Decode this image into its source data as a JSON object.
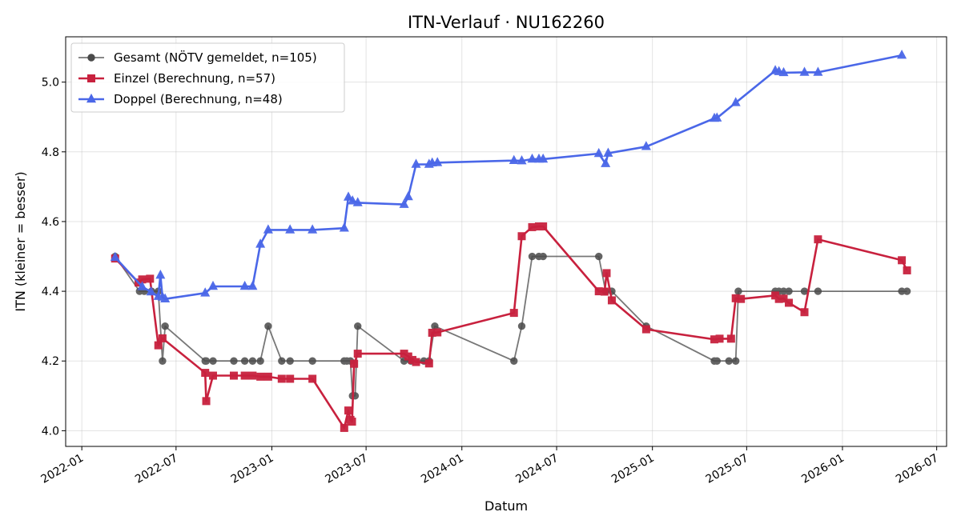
{
  "chart_data": {
    "type": "line",
    "title": "ITN-Verlauf · NU162260",
    "xlabel": "Datum",
    "ylabel": "ITN  (kleiner = besser)",
    "x_ticks": [
      "2022-01",
      "2022-07",
      "2023-01",
      "2023-07",
      "2024-01",
      "2024-07",
      "2025-01",
      "2025-07",
      "2026-01",
      "2026-07"
    ],
    "y_ticks": [
      "4.0",
      "4.2",
      "4.4",
      "4.6",
      "4.8",
      "5.0"
    ],
    "xlim": [
      "2021-12-01",
      "2026-07-20"
    ],
    "ylim": [
      3.955,
      5.13
    ],
    "grid": true,
    "legend_position": "top-left",
    "series": [
      {
        "name": "Gesamt (NÖTV gemeldet, n=105)",
        "color": "#4a4a4a",
        "marker": "circle",
        "points": [
          [
            "2022-03-06",
            4.5
          ],
          [
            "2022-04-22",
            4.4
          ],
          [
            "2022-05-01",
            4.4
          ],
          [
            "2022-05-15",
            4.4
          ],
          [
            "2022-05-28",
            4.4
          ],
          [
            "2022-06-05",
            4.2
          ],
          [
            "2022-06-10",
            4.3
          ],
          [
            "2022-08-26",
            4.2
          ],
          [
            "2022-08-28",
            4.2
          ],
          [
            "2022-09-10",
            4.2
          ],
          [
            "2022-10-20",
            4.2
          ],
          [
            "2022-11-10",
            4.2
          ],
          [
            "2022-11-25",
            4.2
          ],
          [
            "2022-12-10",
            4.2
          ],
          [
            "2022-12-25",
            4.3
          ],
          [
            "2023-01-20",
            4.2
          ],
          [
            "2023-02-05",
            4.2
          ],
          [
            "2023-03-20",
            4.2
          ],
          [
            "2023-05-20",
            4.2
          ],
          [
            "2023-05-25",
            4.2
          ],
          [
            "2023-06-01",
            4.2
          ],
          [
            "2023-06-05",
            4.1
          ],
          [
            "2023-06-10",
            4.1
          ],
          [
            "2023-06-15",
            4.3
          ],
          [
            "2023-09-12",
            4.2
          ],
          [
            "2023-09-25",
            4.2
          ],
          [
            "2023-10-20",
            4.2
          ],
          [
            "2023-10-30",
            4.2
          ],
          [
            "2023-11-10",
            4.3
          ],
          [
            "2024-04-10",
            4.2
          ],
          [
            "2024-04-25",
            4.3
          ],
          [
            "2024-05-15",
            4.5
          ],
          [
            "2024-05-28",
            4.5
          ],
          [
            "2024-06-05",
            4.5
          ],
          [
            "2024-09-20",
            4.5
          ],
          [
            "2024-10-03",
            4.4
          ],
          [
            "2024-10-15",
            4.4
          ],
          [
            "2024-12-20",
            4.3
          ],
          [
            "2025-04-30",
            4.2
          ],
          [
            "2025-05-05",
            4.2
          ],
          [
            "2025-05-28",
            4.2
          ],
          [
            "2025-06-10",
            4.2
          ],
          [
            "2025-06-15",
            4.4
          ],
          [
            "2025-08-25",
            4.4
          ],
          [
            "2025-09-01",
            4.4
          ],
          [
            "2025-09-10",
            4.4
          ],
          [
            "2025-09-20",
            4.4
          ],
          [
            "2025-10-20",
            4.4
          ],
          [
            "2025-11-15",
            4.4
          ],
          [
            "2026-04-25",
            4.4
          ],
          [
            "2026-05-05",
            4.4
          ]
        ]
      },
      {
        "name": "Einzel (Berechnung, n=57)",
        "color": "#c8213e",
        "marker": "square",
        "points": [
          [
            "2022-03-06",
            4.494
          ],
          [
            "2022-04-20",
            4.425
          ],
          [
            "2022-04-27",
            4.434
          ],
          [
            "2022-05-12",
            4.436
          ],
          [
            "2022-05-28",
            4.245
          ],
          [
            "2022-06-05",
            4.265
          ],
          [
            "2022-08-26",
            4.166
          ],
          [
            "2022-08-28",
            4.085
          ],
          [
            "2022-09-10",
            4.158
          ],
          [
            "2022-10-20",
            4.158
          ],
          [
            "2022-11-10",
            4.158
          ],
          [
            "2022-11-25",
            4.158
          ],
          [
            "2022-12-10",
            4.155
          ],
          [
            "2022-12-25",
            4.155
          ],
          [
            "2023-01-20",
            4.149
          ],
          [
            "2023-02-05",
            4.149
          ],
          [
            "2023-03-20",
            4.149
          ],
          [
            "2023-05-20",
            4.008
          ],
          [
            "2023-05-28",
            4.058
          ],
          [
            "2023-06-01",
            4.031
          ],
          [
            "2023-06-04",
            4.026
          ],
          [
            "2023-06-08",
            4.192
          ],
          [
            "2023-06-15",
            4.221
          ],
          [
            "2023-09-12",
            4.221
          ],
          [
            "2023-09-20",
            4.213
          ],
          [
            "2023-09-28",
            4.203
          ],
          [
            "2023-10-05",
            4.197
          ],
          [
            "2023-10-30",
            4.193
          ],
          [
            "2023-11-05",
            4.281
          ],
          [
            "2023-11-15",
            4.282
          ],
          [
            "2024-04-10",
            4.338
          ],
          [
            "2024-04-25",
            4.558
          ],
          [
            "2024-05-15",
            4.584
          ],
          [
            "2024-05-28",
            4.586
          ],
          [
            "2024-06-05",
            4.586
          ],
          [
            "2024-09-20",
            4.4
          ],
          [
            "2024-10-01",
            4.399
          ],
          [
            "2024-10-05",
            4.452
          ],
          [
            "2024-10-15",
            4.374
          ],
          [
            "2024-12-20",
            4.291
          ],
          [
            "2025-04-30",
            4.262
          ],
          [
            "2025-05-10",
            4.264
          ],
          [
            "2025-06-01",
            4.264
          ],
          [
            "2025-06-10",
            4.38
          ],
          [
            "2025-06-20",
            4.378
          ],
          [
            "2025-08-25",
            4.388
          ],
          [
            "2025-09-01",
            4.378
          ],
          [
            "2025-09-10",
            4.379
          ],
          [
            "2025-09-20",
            4.367
          ],
          [
            "2025-10-20",
            4.34
          ],
          [
            "2025-11-15",
            4.549
          ],
          [
            "2026-04-25",
            4.489
          ],
          [
            "2026-05-05",
            4.46
          ]
        ]
      },
      {
        "name": "Doppel (Berechnung, n=48)",
        "color": "#4a67e8",
        "marker": "triangle",
        "points": [
          [
            "2022-03-06",
            4.497
          ],
          [
            "2022-04-27",
            4.413
          ],
          [
            "2022-05-14",
            4.398
          ],
          [
            "2022-05-28",
            4.385
          ],
          [
            "2022-06-01",
            4.446
          ],
          [
            "2022-06-05",
            4.383
          ],
          [
            "2022-06-10",
            4.378
          ],
          [
            "2022-08-26",
            4.395
          ],
          [
            "2022-09-10",
            4.414
          ],
          [
            "2022-11-10",
            4.414
          ],
          [
            "2022-11-25",
            4.414
          ],
          [
            "2022-12-10",
            4.535
          ],
          [
            "2022-12-25",
            4.576
          ],
          [
            "2023-02-05",
            4.576
          ],
          [
            "2023-03-20",
            4.576
          ],
          [
            "2023-05-20",
            4.581
          ],
          [
            "2023-05-28",
            4.67
          ],
          [
            "2023-06-05",
            4.659
          ],
          [
            "2023-06-15",
            4.654
          ],
          [
            "2023-09-12",
            4.649
          ],
          [
            "2023-09-20",
            4.671
          ],
          [
            "2023-10-05",
            4.764
          ],
          [
            "2023-10-30",
            4.764
          ],
          [
            "2023-11-05",
            4.768
          ],
          [
            "2023-11-15",
            4.769
          ],
          [
            "2024-04-10",
            4.775
          ],
          [
            "2024-04-25",
            4.774
          ],
          [
            "2024-05-15",
            4.779
          ],
          [
            "2024-05-28",
            4.779
          ],
          [
            "2024-06-05",
            4.779
          ],
          [
            "2024-09-20",
            4.795
          ],
          [
            "2024-10-03",
            4.766
          ],
          [
            "2024-10-08",
            4.796
          ],
          [
            "2024-12-20",
            4.815
          ],
          [
            "2025-04-30",
            4.896
          ],
          [
            "2025-05-05",
            4.897
          ],
          [
            "2025-06-10",
            4.941
          ],
          [
            "2025-08-25",
            5.033
          ],
          [
            "2025-09-01",
            5.03
          ],
          [
            "2025-09-10",
            5.027
          ],
          [
            "2025-10-20",
            5.028
          ],
          [
            "2025-11-15",
            5.028
          ],
          [
            "2026-04-25",
            5.077
          ]
        ]
      }
    ]
  }
}
